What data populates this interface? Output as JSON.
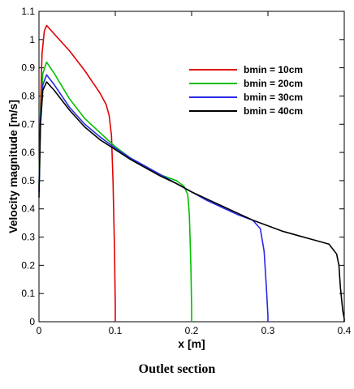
{
  "caption": "Outlet section",
  "chart_data": {
    "type": "line",
    "title": "",
    "xlabel": "x [m]",
    "ylabel": "Velocity magnitude [m/s]",
    "xlim": [
      0,
      0.4
    ],
    "ylim": [
      0,
      1.1
    ],
    "xticks": [
      "0",
      "0.1",
      "0.2",
      "0.3",
      "0.4"
    ],
    "xtick_values": [
      0,
      0.1,
      0.2,
      0.3,
      0.4
    ],
    "yticks": [
      "0",
      "0.1",
      "0.2",
      "0.3",
      "0.4",
      "0.5",
      "0.6",
      "0.7",
      "0.8",
      "0.9",
      "1",
      "1.1"
    ],
    "ytick_values": [
      0,
      0.1,
      0.2,
      0.3,
      0.4,
      0.5,
      0.6,
      0.7,
      0.8,
      0.9,
      1.0,
      1.1
    ],
    "grid": false,
    "legend_position": "top-right",
    "series": [
      {
        "name": "bmin = 10cm",
        "color": "#e00000",
        "points": [
          [
            0,
            0.47
          ],
          [
            0.002,
            0.76
          ],
          [
            0.004,
            0.95
          ],
          [
            0.007,
            1.03
          ],
          [
            0.01,
            1.05
          ],
          [
            0.02,
            1.02
          ],
          [
            0.04,
            0.96
          ],
          [
            0.06,
            0.89
          ],
          [
            0.07,
            0.85
          ],
          [
            0.08,
            0.81
          ],
          [
            0.088,
            0.77
          ],
          [
            0.092,
            0.73
          ],
          [
            0.095,
            0.66
          ],
          [
            0.097,
            0.5
          ],
          [
            0.099,
            0.25
          ],
          [
            0.1,
            0.05
          ],
          [
            0.1,
            0
          ]
        ]
      },
      {
        "name": "bmin = 20cm",
        "color": "#00c000",
        "points": [
          [
            0,
            0.48
          ],
          [
            0.002,
            0.74
          ],
          [
            0.005,
            0.88
          ],
          [
            0.01,
            0.92
          ],
          [
            0.02,
            0.88
          ],
          [
            0.04,
            0.79
          ],
          [
            0.06,
            0.72
          ],
          [
            0.08,
            0.67
          ],
          [
            0.1,
            0.62
          ],
          [
            0.12,
            0.58
          ],
          [
            0.14,
            0.55
          ],
          [
            0.16,
            0.52
          ],
          [
            0.18,
            0.5
          ],
          [
            0.19,
            0.48
          ],
          [
            0.195,
            0.45
          ],
          [
            0.197,
            0.38
          ],
          [
            0.199,
            0.2
          ],
          [
            0.2,
            0.05
          ],
          [
            0.2,
            0
          ]
        ]
      },
      {
        "name": "bmin = 30cm",
        "color": "#2828e8",
        "points": [
          [
            0,
            0.46
          ],
          [
            0.002,
            0.72
          ],
          [
            0.005,
            0.84
          ],
          [
            0.01,
            0.875
          ],
          [
            0.02,
            0.84
          ],
          [
            0.04,
            0.76
          ],
          [
            0.06,
            0.7
          ],
          [
            0.08,
            0.655
          ],
          [
            0.1,
            0.615
          ],
          [
            0.12,
            0.58
          ],
          [
            0.14,
            0.55
          ],
          [
            0.16,
            0.52
          ],
          [
            0.18,
            0.49
          ],
          [
            0.2,
            0.46
          ],
          [
            0.22,
            0.43
          ],
          [
            0.24,
            0.405
          ],
          [
            0.26,
            0.38
          ],
          [
            0.28,
            0.36
          ],
          [
            0.29,
            0.33
          ],
          [
            0.295,
            0.25
          ],
          [
            0.298,
            0.12
          ],
          [
            0.3,
            0.02
          ],
          [
            0.3,
            0
          ]
        ]
      },
      {
        "name": "bmin = 40cm",
        "color": "#000000",
        "points": [
          [
            0,
            0.44
          ],
          [
            0.002,
            0.7
          ],
          [
            0.005,
            0.82
          ],
          [
            0.01,
            0.85
          ],
          [
            0.02,
            0.82
          ],
          [
            0.04,
            0.75
          ],
          [
            0.06,
            0.69
          ],
          [
            0.08,
            0.645
          ],
          [
            0.1,
            0.61
          ],
          [
            0.12,
            0.575
          ],
          [
            0.14,
            0.545
          ],
          [
            0.16,
            0.515
          ],
          [
            0.18,
            0.49
          ],
          [
            0.2,
            0.46
          ],
          [
            0.22,
            0.435
          ],
          [
            0.24,
            0.41
          ],
          [
            0.26,
            0.385
          ],
          [
            0.28,
            0.36
          ],
          [
            0.3,
            0.34
          ],
          [
            0.32,
            0.32
          ],
          [
            0.34,
            0.305
          ],
          [
            0.36,
            0.29
          ],
          [
            0.38,
            0.275
          ],
          [
            0.39,
            0.24
          ],
          [
            0.393,
            0.2
          ],
          [
            0.395,
            0.12
          ],
          [
            0.398,
            0.04
          ],
          [
            0.4,
            0.01
          ],
          [
            0.4,
            0
          ]
        ]
      }
    ]
  }
}
